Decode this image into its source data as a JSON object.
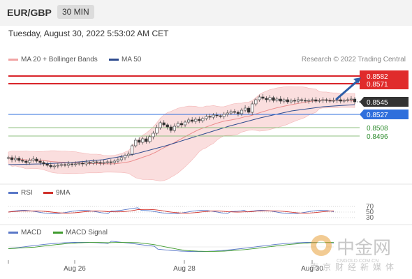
{
  "header": {
    "pair": "EUR/GBP",
    "timeframe": "30 MIN"
  },
  "datetime": "Tuesday, August 30, 2022 5:53:02 AM CET",
  "legend_main": [
    {
      "label": "MA 20 + Bollinger Bands",
      "color": "#f1a4a4"
    },
    {
      "label": "MA 50",
      "color": "#2e4c8f"
    }
  ],
  "credit": "Research © 2022 Trading Central",
  "legend_rsi": [
    {
      "label": "RSI",
      "color": "#5a78c8"
    },
    {
      "label": "9MA",
      "color": "#d0302a"
    }
  ],
  "legend_macd": [
    {
      "label": "MACD",
      "color": "#5a78c8"
    },
    {
      "label": "MACD Signal",
      "color": "#3f9b2e"
    }
  ],
  "watermark": {
    "name": "中金网",
    "url": "CNGOLD.COM.CN",
    "sub": "南京财经新媒体"
  },
  "chart_data": [
    {
      "type": "candlestick",
      "title": "EUR/GBP 30 MIN",
      "x_ticks": [
        "Aug 26",
        "Aug 28",
        "Aug 30"
      ],
      "ylim": [
        0.8435,
        0.8595
      ],
      "levels": [
        {
          "value": "0.8582",
          "kind": "resistance",
          "color": "#d9242a"
        },
        {
          "value": "0.8571",
          "kind": "resistance",
          "color": "#d9242a"
        },
        {
          "value": "0.8545",
          "kind": "last price",
          "color": "#333333"
        },
        {
          "value": "0.8527",
          "kind": "pivot",
          "color": "#2f6fdc"
        },
        {
          "value": "0.8508",
          "kind": "support",
          "color": "#2e8b2e"
        },
        {
          "value": "0.8496",
          "kind": "support",
          "color": "#2e8b2e"
        }
      ],
      "price_path_close": [
        0.8465,
        0.8462,
        0.8464,
        0.8461,
        0.846,
        0.8458,
        0.8461,
        0.8463,
        0.846,
        0.8458,
        0.8456,
        0.8454,
        0.8452,
        0.8453,
        0.8454,
        0.8455,
        0.8454,
        0.8456,
        0.8455,
        0.8456,
        0.8457,
        0.8456,
        0.8458,
        0.8457,
        0.8459,
        0.8458,
        0.8457,
        0.8458,
        0.8459,
        0.8458,
        0.846,
        0.8462,
        0.8465,
        0.8468,
        0.847,
        0.8482,
        0.849,
        0.8487,
        0.8492,
        0.8488,
        0.8495,
        0.85,
        0.8508,
        0.8515,
        0.8512,
        0.8509,
        0.8504,
        0.851,
        0.8514,
        0.8512,
        0.8516,
        0.8519,
        0.8517,
        0.852,
        0.8518,
        0.8521,
        0.8524,
        0.8523,
        0.8526,
        0.8525,
        0.8524,
        0.8527,
        0.8529,
        0.8531,
        0.853,
        0.8528,
        0.8533,
        0.8536,
        0.853,
        0.8542,
        0.8548,
        0.8552,
        0.855,
        0.8548,
        0.8551,
        0.8547,
        0.8549,
        0.8546,
        0.8548,
        0.8545,
        0.8547,
        0.8546,
        0.8548,
        0.8547,
        0.8546,
        0.8547,
        0.8548,
        0.8546,
        0.8547,
        0.8548,
        0.8547,
        0.8546,
        0.8547,
        0.8548,
        0.8546,
        0.8547,
        0.8548,
        0.8549,
        0.8545
      ],
      "ma50": [
        0.8455,
        0.8456,
        0.8458,
        0.8462,
        0.847,
        0.8482,
        0.8496,
        0.851,
        0.8522,
        0.8532,
        0.8538,
        0.8541
      ],
      "projection": {
        "from": 0.8545,
        "to": 0.8582
      }
    },
    {
      "type": "line",
      "title": "RSI",
      "y_ticks": [
        70,
        50,
        30
      ],
      "series": [
        {
          "name": "RSI"
        },
        {
          "name": "9MA"
        }
      ]
    },
    {
      "type": "line",
      "title": "MACD",
      "series": [
        {
          "name": "MACD"
        },
        {
          "name": "MACD Signal"
        }
      ]
    }
  ]
}
